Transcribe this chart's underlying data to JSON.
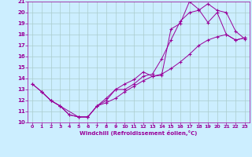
{
  "xlabel": "Windchill (Refroidissement éolien,°C)",
  "bg_color": "#cceeff",
  "grid_color": "#aacccc",
  "line_color": "#990099",
  "xlim": [
    -0.5,
    23.5
  ],
  "ylim": [
    10,
    21
  ],
  "xticks": [
    0,
    1,
    2,
    3,
    4,
    5,
    6,
    7,
    8,
    9,
    10,
    11,
    12,
    13,
    14,
    15,
    16,
    17,
    18,
    19,
    20,
    21,
    22,
    23
  ],
  "yticks": [
    10,
    11,
    12,
    13,
    14,
    15,
    16,
    17,
    18,
    19,
    20,
    21
  ],
  "line1_x": [
    1,
    2,
    3,
    4,
    5,
    6,
    7,
    8,
    9,
    10,
    11,
    12,
    13,
    14,
    15,
    16,
    17,
    18,
    19,
    20,
    21,
    22,
    23
  ],
  "line1_y": [
    12.8,
    12.0,
    11.5,
    10.7,
    10.5,
    10.5,
    11.5,
    12.0,
    13.0,
    13.0,
    13.5,
    14.2,
    14.4,
    15.8,
    17.5,
    19.2,
    20.0,
    20.2,
    20.8,
    20.2,
    20.0,
    18.3,
    17.6
  ],
  "line2_x": [
    0,
    1,
    2,
    3,
    4,
    5,
    6,
    7,
    8,
    9,
    10,
    11,
    12,
    13,
    14,
    15,
    16,
    17,
    18,
    19,
    20,
    21,
    22,
    23
  ],
  "line2_y": [
    13.5,
    12.8,
    12.0,
    11.5,
    10.7,
    10.5,
    10.5,
    11.5,
    12.2,
    13.0,
    13.5,
    13.9,
    14.6,
    14.2,
    14.3,
    18.5,
    19.0,
    21.0,
    20.3,
    19.1,
    20.0,
    18.0,
    17.5,
    17.7
  ],
  "line3_x": [
    0,
    1,
    2,
    3,
    5,
    6,
    7,
    8,
    9,
    10,
    11,
    12,
    13,
    14,
    15,
    16,
    17,
    18,
    19,
    20,
    21,
    22,
    23
  ],
  "line3_y": [
    13.5,
    12.8,
    12.0,
    11.5,
    10.5,
    10.5,
    11.5,
    11.8,
    12.2,
    12.8,
    13.3,
    13.8,
    14.2,
    14.4,
    14.9,
    15.5,
    16.2,
    17.0,
    17.5,
    17.8,
    18.0,
    17.5,
    17.7
  ]
}
